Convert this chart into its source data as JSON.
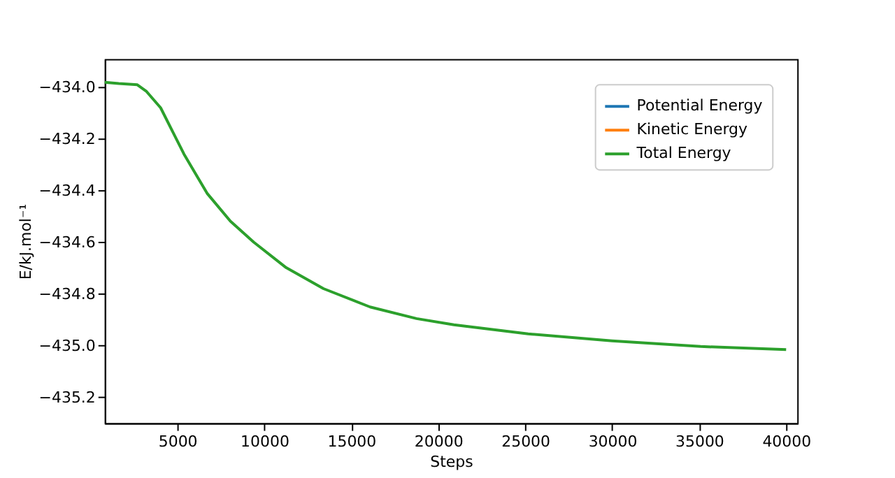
{
  "chart_data": {
    "type": "line",
    "xlabel": "Steps",
    "ylabel": "E/kJ.mol⁻¹",
    "xlim": [
      825,
      40640
    ],
    "ylim": [
      -435.3,
      -433.89
    ],
    "xticks": [
      5000,
      10000,
      15000,
      20000,
      25000,
      30000,
      35000,
      40000
    ],
    "yticks": [
      {
        "value": -434,
        "label": "−434.0"
      },
      {
        "value": -434.2,
        "label": "−434.2"
      },
      {
        "value": -434.4,
        "label": "−434.4"
      },
      {
        "value": -434.6,
        "label": "−434.6"
      },
      {
        "value": -434.8,
        "label": "−434.8"
      },
      {
        "value": -435,
        "label": "−435.0"
      },
      {
        "value": -435.2,
        "label": "−435.2"
      }
    ],
    "x": [
      825,
      1630,
      2700,
      3230,
      4040,
      5380,
      6710,
      8050,
      9390,
      11260,
      13400,
      16080,
      18750,
      20900,
      25170,
      29990,
      35080,
      40000
    ],
    "series": [
      {
        "name": "Potential Energy",
        "color": "#1f77b4",
        "values": [
          null,
          null,
          null,
          null,
          null,
          null,
          null,
          null,
          null,
          null,
          null,
          null,
          null,
          null,
          null,
          null,
          null,
          null
        ]
      },
      {
        "name": "Kinetic Energy",
        "color": "#ff7f0e",
        "values": [
          null,
          null,
          null,
          null,
          null,
          null,
          null,
          null,
          null,
          null,
          null,
          null,
          null,
          null,
          null,
          null,
          null,
          null
        ]
      },
      {
        "name": "Total Energy",
        "color": "#2ca02c",
        "values": [
          -433.98,
          -433.985,
          -433.99,
          -434.016,
          -434.079,
          -434.258,
          -434.41,
          -434.518,
          -434.599,
          -434.698,
          -434.779,
          -434.85,
          -434.895,
          -434.919,
          -434.954,
          -434.981,
          -435.003,
          -435.015
        ]
      }
    ],
    "grid": false,
    "legend": "top right",
    "line_style": "solid",
    "marker": "none"
  }
}
